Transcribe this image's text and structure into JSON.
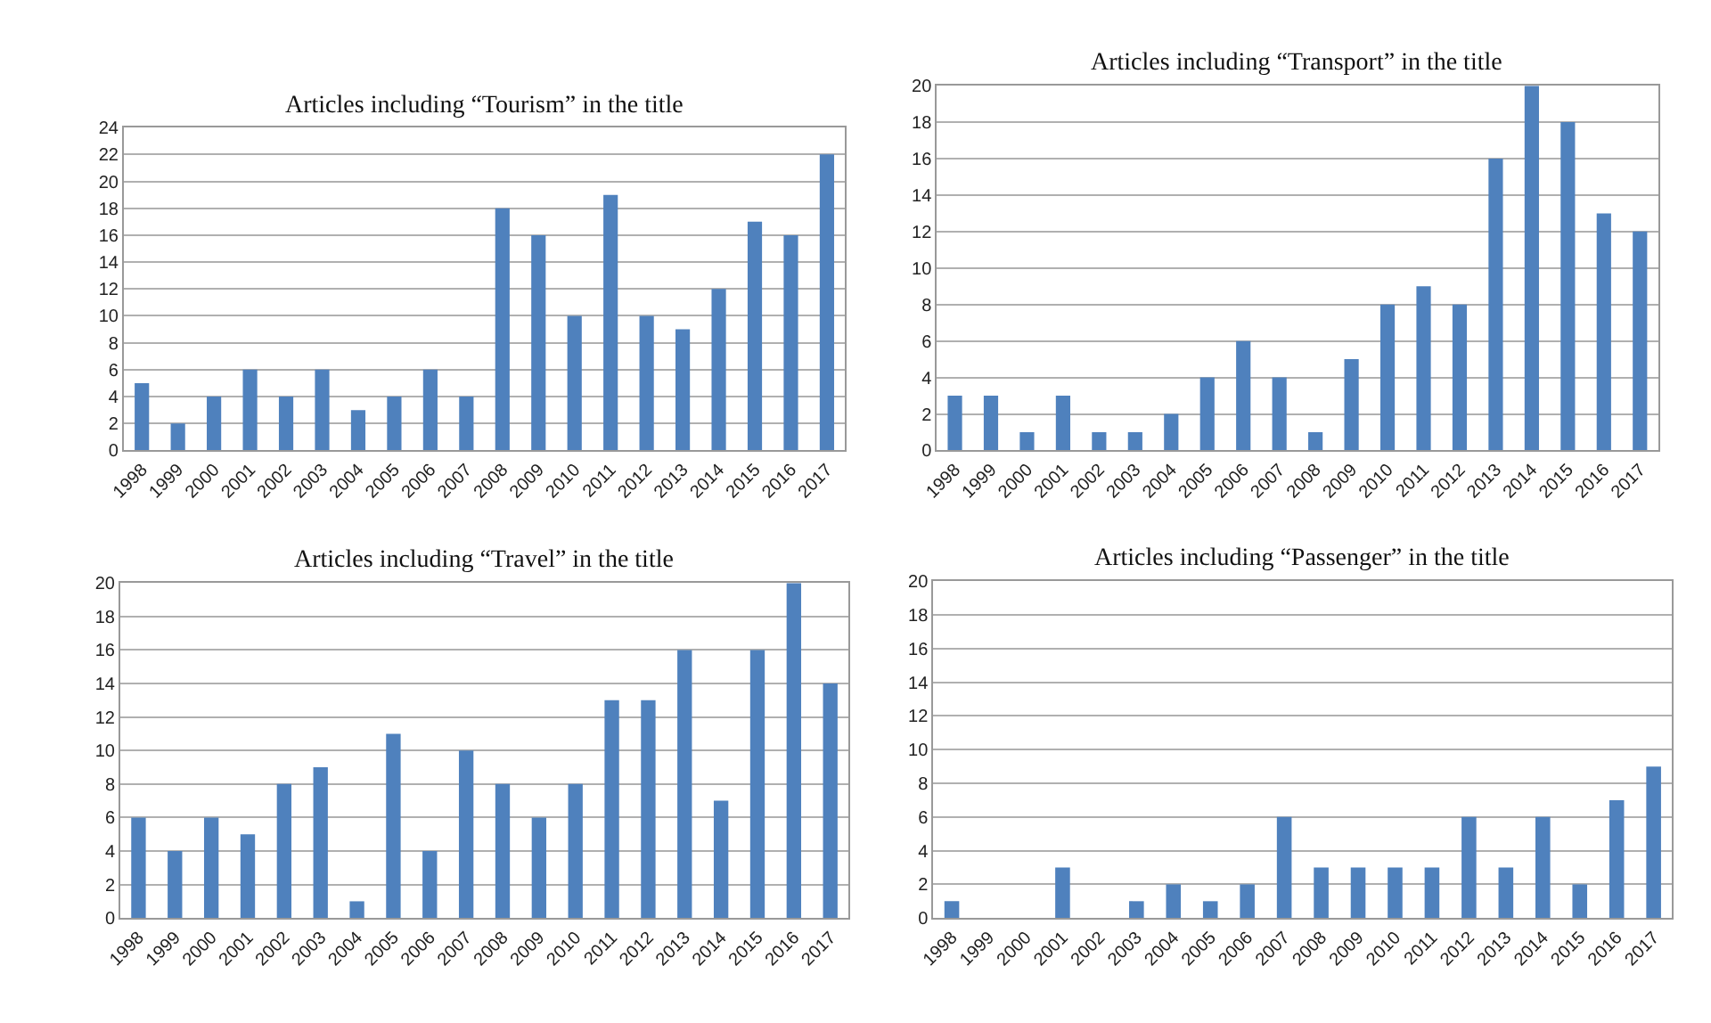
{
  "chart_data": [
    {
      "type": "bar",
      "title": "Articles including “Tourism” in the title",
      "categories": [
        "1998",
        "1999",
        "2000",
        "2001",
        "2002",
        "2003",
        "2004",
        "2005",
        "2006",
        "2007",
        "2008",
        "2009",
        "2010",
        "2011",
        "2012",
        "2013",
        "2014",
        "2015",
        "2016",
        "2017"
      ],
      "values": [
        5,
        2,
        4,
        6,
        4,
        6,
        3,
        4,
        6,
        4,
        18,
        16,
        10,
        19,
        10,
        9,
        12,
        17,
        16,
        22
      ],
      "color": "#4f81bd",
      "ylim": [
        0,
        24
      ],
      "yticks": [
        0,
        2,
        4,
        6,
        8,
        10,
        12,
        14,
        16,
        18,
        20,
        22,
        24
      ],
      "grid": "y",
      "legend": false
    },
    {
      "type": "bar",
      "title": "Articles including “Transport” in the title",
      "categories": [
        "1998",
        "1999",
        "2000",
        "2001",
        "2002",
        "2003",
        "2004",
        "2005",
        "2006",
        "2007",
        "2008",
        "2009",
        "2010",
        "2011",
        "2012",
        "2013",
        "2014",
        "2015",
        "2016",
        "2017"
      ],
      "values": [
        3,
        3,
        1,
        3,
        1,
        1,
        2,
        4,
        6,
        4,
        1,
        5,
        8,
        9,
        8,
        16,
        20,
        18,
        13,
        12
      ],
      "color": "#4f81bd",
      "ylim": [
        0,
        20
      ],
      "yticks": [
        0,
        2,
        4,
        6,
        8,
        10,
        12,
        14,
        16,
        18,
        20
      ],
      "grid": "y",
      "legend": false
    },
    {
      "type": "bar",
      "title": "Articles including “Travel” in the title",
      "categories": [
        "1998",
        "1999",
        "2000",
        "2001",
        "2002",
        "2003",
        "2004",
        "2005",
        "2006",
        "2007",
        "2008",
        "2009",
        "2010",
        "2011",
        "2012",
        "2013",
        "2014",
        "2015",
        "2016",
        "2017"
      ],
      "values": [
        6,
        4,
        6,
        5,
        8,
        9,
        1,
        11,
        4,
        10,
        8,
        6,
        8,
        13,
        13,
        16,
        7,
        16,
        20,
        14
      ],
      "color": "#4f81bd",
      "ylim": [
        0,
        20
      ],
      "yticks": [
        0,
        2,
        4,
        6,
        8,
        10,
        12,
        14,
        16,
        18,
        20
      ],
      "grid": "y",
      "legend": false
    },
    {
      "type": "bar",
      "title": "Articles including “Passenger” in the title",
      "categories": [
        "1998",
        "1999",
        "2000",
        "2001",
        "2002",
        "2003",
        "2004",
        "2005",
        "2006",
        "2007",
        "2008",
        "2009",
        "2010",
        "2011",
        "2012",
        "2013",
        "2014",
        "2015",
        "2016",
        "2017"
      ],
      "values": [
        1,
        0,
        0,
        3,
        0,
        1,
        2,
        1,
        2,
        6,
        3,
        3,
        3,
        3,
        6,
        3,
        6,
        2,
        7,
        9
      ],
      "color": "#4f81bd",
      "ylim": [
        0,
        20
      ],
      "yticks": [
        0,
        2,
        4,
        6,
        8,
        10,
        12,
        14,
        16,
        18,
        20
      ],
      "grid": "y",
      "legend": false
    }
  ]
}
